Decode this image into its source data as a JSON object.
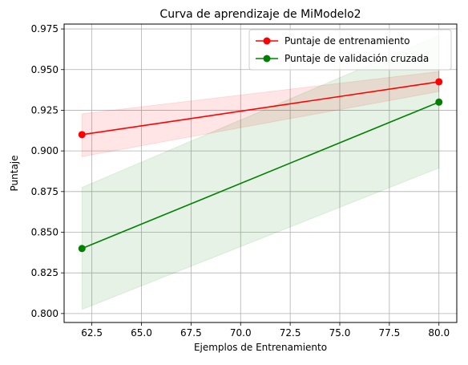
{
  "chart_data": {
    "type": "line",
    "title": "Curva de aprendizaje de MiModelo2",
    "xlabel": "Ejemplos de Entrenamiento",
    "ylabel": "Puntaje",
    "xlim": [
      61.1,
      80.9
    ],
    "ylim": [
      0.7945,
      0.978
    ],
    "grid": true,
    "legend_position": "top-right",
    "x_ticks": [
      62.5,
      65.0,
      67.5,
      70.0,
      72.5,
      75.0,
      77.5,
      80.0
    ],
    "x_tick_labels": [
      "62.5",
      "65.0",
      "67.5",
      "70.0",
      "72.5",
      "75.0",
      "77.5",
      "80.0"
    ],
    "y_ticks": [
      0.8,
      0.825,
      0.85,
      0.875,
      0.9,
      0.925,
      0.95,
      0.975
    ],
    "y_tick_labels": [
      "0.800",
      "0.825",
      "0.850",
      "0.875",
      "0.900",
      "0.925",
      "0.950",
      "0.975"
    ],
    "series": [
      {
        "name": "Puntaje de entrenamiento",
        "color": "#ff0000",
        "fill_color": "#ff0000",
        "x": [
          62,
          80
        ],
        "values": [
          0.91,
          0.9425
        ],
        "band_lower": [
          0.8965,
          0.9365
        ],
        "band_upper": [
          0.9228,
          0.9488
        ]
      },
      {
        "name": "Puntaje de validación cruzada",
        "color": "#008000",
        "fill_color": "#008000",
        "x": [
          62,
          80
        ],
        "values": [
          0.84,
          0.93
        ],
        "band_lower": [
          0.8025,
          0.8895
        ],
        "band_upper": [
          0.8775,
          0.971
        ]
      }
    ]
  }
}
